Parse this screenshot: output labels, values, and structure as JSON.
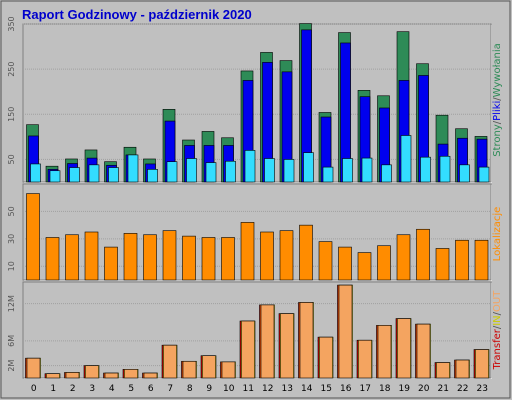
{
  "title": "Raport Godzinowy -  październik 2020",
  "chart_data": [
    {
      "type": "bar",
      "panel": "top",
      "categories": [
        "0",
        "1",
        "2",
        "3",
        "4",
        "5",
        "6",
        "7",
        "8",
        "9",
        "10",
        "11",
        "12",
        "13",
        "14",
        "15",
        "16",
        "17",
        "18",
        "19",
        "20",
        "21",
        "22",
        "23"
      ],
      "series": [
        {
          "name": "Strony",
          "color": "#2e8b57",
          "values": [
            127,
            35,
            51,
            71,
            45,
            77,
            51,
            161,
            93,
            112,
            98,
            246,
            287,
            269,
            351,
            154,
            331,
            203,
            191,
            333,
            262,
            148,
            118,
            101
          ]
        },
        {
          "name": "Pliki",
          "color": "#0000ee",
          "values": [
            102,
            28,
            41,
            53,
            37,
            60,
            40,
            135,
            81,
            81,
            81,
            225,
            265,
            244,
            337,
            144,
            308,
            189,
            164,
            225,
            236,
            84,
            97,
            95
          ]
        },
        {
          "name": "Wywołania",
          "color": "#33ddff",
          "values": [
            40,
            25,
            32,
            38,
            32,
            60,
            28,
            45,
            52,
            43,
            46,
            70,
            52,
            50,
            65,
            33,
            52,
            53,
            38,
            103,
            55,
            57,
            38,
            33
          ]
        }
      ],
      "yticks": [
        50,
        150,
        250,
        350
      ],
      "ylim": [
        0,
        350
      ]
    },
    {
      "type": "bar",
      "panel": "middle",
      "categories": [
        "0",
        "1",
        "2",
        "3",
        "4",
        "5",
        "6",
        "7",
        "8",
        "9",
        "10",
        "11",
        "12",
        "13",
        "14",
        "15",
        "16",
        "17",
        "18",
        "19",
        "20",
        "21",
        "22",
        "23"
      ],
      "series": [
        {
          "name": "Lokalizacje",
          "color": "#ff8c00",
          "values": [
            63,
            31,
            33,
            35,
            24,
            34,
            33,
            36,
            32,
            31,
            31,
            42,
            35,
            36,
            40,
            28,
            24,
            20,
            25,
            33,
            37,
            23,
            29,
            29
          ]
        }
      ],
      "yticks": [
        10,
        30,
        50
      ],
      "ylim": [
        0,
        70
      ]
    },
    {
      "type": "bar",
      "panel": "bottom",
      "categories": [
        "0",
        "1",
        "2",
        "3",
        "4",
        "5",
        "6",
        "7",
        "8",
        "9",
        "10",
        "11",
        "12",
        "13",
        "14",
        "15",
        "16",
        "17",
        "18",
        "19",
        "20",
        "21",
        "22",
        "23"
      ],
      "series": [
        {
          "name": "Transfer",
          "color": "#cc0000",
          "values": [
            3.2,
            0.7,
            0.9,
            2.0,
            0.8,
            1.4,
            0.8,
            5.3,
            2.7,
            3.6,
            2.6,
            9.2,
            11.8,
            10.4,
            12.2,
            6.6,
            15.0,
            6.1,
            8.5,
            9.6,
            8.7,
            2.5,
            2.9,
            4.6
          ]
        },
        {
          "name": "IN",
          "color": "#ffff00",
          "values": [
            3.2,
            0.7,
            0.9,
            2.0,
            0.8,
            1.4,
            0.8,
            5.3,
            2.7,
            3.6,
            2.6,
            9.2,
            11.8,
            10.4,
            12.2,
            6.6,
            15.0,
            6.1,
            8.5,
            9.6,
            8.7,
            2.5,
            2.9,
            4.6
          ]
        },
        {
          "name": "OUT",
          "color": "#f4a460",
          "values": [
            3.2,
            0.7,
            0.9,
            2.0,
            0.8,
            1.4,
            0.8,
            5.3,
            2.7,
            3.6,
            2.6,
            9.2,
            11.8,
            10.4,
            12.2,
            6.6,
            15.0,
            6.1,
            8.5,
            9.6,
            8.7,
            2.5,
            2.9,
            4.6
          ]
        }
      ],
      "yticks": [
        2,
        6,
        12
      ],
      "ytick_labels": [
        "2M",
        "6M",
        "12M"
      ],
      "ylim": [
        0,
        15.5
      ]
    }
  ],
  "legend": {
    "top": [
      {
        "text": "Strony",
        "color": "#2e8b57"
      },
      {
        "text": "/",
        "color": "#555555"
      },
      {
        "text": "Pliki",
        "color": "#0000ee"
      },
      {
        "text": "/",
        "color": "#555555"
      },
      {
        "text": "Wywołania",
        "color": "#2e8b57"
      }
    ],
    "middle": [
      {
        "text": "Lokalizacje",
        "color": "#ff8c00"
      }
    ],
    "bottom": [
      {
        "text": "Transfer",
        "color": "#cc0000"
      },
      {
        "text": "/",
        "color": "#555555"
      },
      {
        "text": "IN",
        "color": "#cccc00"
      },
      {
        "text": "/",
        "color": "#555555"
      },
      {
        "text": "OUT",
        "color": "#f4a460"
      }
    ]
  }
}
